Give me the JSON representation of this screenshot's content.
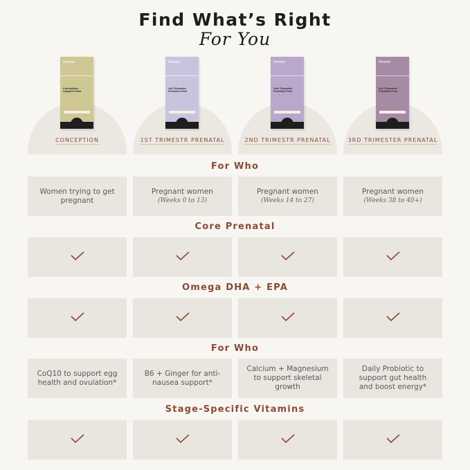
{
  "title": {
    "line1": "Find What’s Right",
    "line2": "For You"
  },
  "colors": {
    "accent": "#8b4a33",
    "cell": "#e9e5df",
    "background": "#f8f6f3"
  },
  "products": [
    {
      "label": "CONCEPTION",
      "brand": "Perelel",
      "pack_name": "Conception Support Pack",
      "box_color": "#cfc794"
    },
    {
      "label": "1ST TRIMESTR PRENATAL",
      "brand": "Perelel",
      "pack_name": "1st Trimester Prenatal Pack",
      "box_color": "#c9c4de"
    },
    {
      "label": "2ND TRIMESTR PRENATAL",
      "brand": "Perelel",
      "pack_name": "2nd Trimester Prenatal Pack",
      "box_color": "#b9a8cb"
    },
    {
      "label": "3RD TRIMESTER PRENATAL",
      "brand": "Perelel",
      "pack_name": "3rd Trimester Prenatal Pack",
      "box_color": "#a58ca4"
    }
  ],
  "rows": [
    {
      "heading": "For Who",
      "cells": [
        {
          "text": "Women trying to get pregnant",
          "sub": ""
        },
        {
          "text": "Pregnant women",
          "sub": "(Weeks 0 to 13)"
        },
        {
          "text": "Pregnant women",
          "sub": "(Weeks 14 to 27)"
        },
        {
          "text": "Pregnant women",
          "sub": "(Weeks 38 to 40+)"
        }
      ]
    },
    {
      "heading": "Core Prenatal",
      "checks": [
        true,
        true,
        true,
        true
      ]
    },
    {
      "heading": "Omega DHA + EPA",
      "checks": [
        true,
        true,
        true,
        true
      ]
    },
    {
      "heading": "For Who",
      "cells": [
        {
          "text": "CoQ10 to support egg health and ovulation*",
          "sub": ""
        },
        {
          "text": "B6 + Ginger for anti-nausea support*",
          "sub": ""
        },
        {
          "text": "Calcium + Magnesium to support skeletal growth",
          "sub": ""
        },
        {
          "text": "Daily Probiotic to support gut health and boost energy*",
          "sub": ""
        }
      ]
    },
    {
      "heading": "Stage-Specific Vitamins",
      "checks": [
        true,
        true,
        true,
        true
      ]
    }
  ]
}
